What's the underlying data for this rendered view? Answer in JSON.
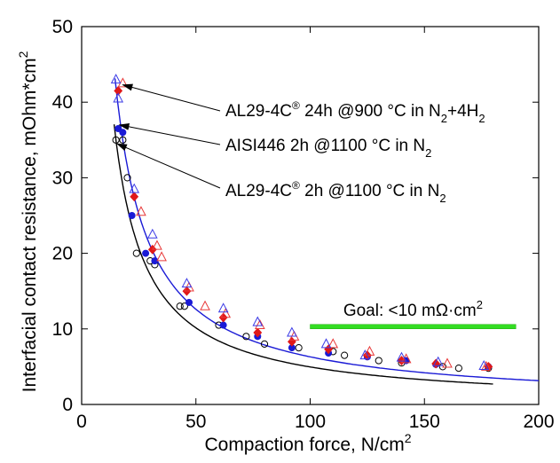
{
  "chart_data": {
    "type": "scatter",
    "xlabel": "Compaction force, N/cm",
    "xlabel_sup": "2",
    "ylabel": "Interfacial contact resistance, mOhm*cm",
    "ylabel_sup": "2",
    "xlim": [
      0,
      200
    ],
    "ylim": [
      0,
      50
    ],
    "x_ticks": [
      0,
      50,
      100,
      150,
      200
    ],
    "y_ticks": [
      0,
      10,
      20,
      30,
      40,
      50
    ],
    "x_tick_labels": [
      "0",
      "50",
      "100",
      "150",
      "200"
    ],
    "y_tick_labels": [
      "0",
      "10",
      "20",
      "30",
      "40",
      "50"
    ],
    "grid": false,
    "series": [
      {
        "marker": "open-circle",
        "color": "#000000",
        "points": [
          [
            15,
            35
          ],
          [
            18,
            35
          ],
          [
            20,
            30
          ],
          [
            24,
            20
          ],
          [
            30,
            19
          ],
          [
            32,
            18.5
          ],
          [
            43,
            13
          ],
          [
            45,
            13
          ],
          [
            60,
            10.5
          ],
          [
            72,
            9
          ],
          [
            80,
            8
          ],
          [
            95,
            7.5
          ],
          [
            110,
            7
          ],
          [
            115,
            6.5
          ],
          [
            130,
            5.8
          ],
          [
            140,
            5.5
          ],
          [
            158,
            5
          ],
          [
            165,
            4.8
          ],
          [
            178,
            4.8
          ]
        ]
      },
      {
        "marker": "filled-circle",
        "color": "#1a1ad6",
        "points": [
          [
            16,
            36.5
          ],
          [
            18,
            36
          ],
          [
            22,
            25
          ],
          [
            28,
            20
          ],
          [
            32,
            19
          ],
          [
            47,
            13.5
          ],
          [
            62,
            10.5
          ],
          [
            77,
            9
          ],
          [
            92,
            7.5
          ],
          [
            108,
            6.8
          ],
          [
            125,
            6.3
          ],
          [
            142,
            5.8
          ],
          [
            155,
            5.3
          ],
          [
            178,
            5
          ]
        ]
      },
      {
        "marker": "filled-diamond",
        "color": "#e01818",
        "points": [
          [
            16,
            41.5
          ],
          [
            23,
            27.5
          ],
          [
            31,
            20.5
          ],
          [
            46,
            15
          ],
          [
            62,
            11.5
          ],
          [
            77,
            9.5
          ],
          [
            92,
            8.3
          ],
          [
            108,
            7.3
          ],
          [
            125,
            6.5
          ],
          [
            140,
            5.8
          ],
          [
            155,
            5.4
          ],
          [
            178,
            5
          ]
        ]
      },
      {
        "marker": "open-triangle",
        "color": "#e83a3a",
        "points": [
          [
            18,
            42.5
          ],
          [
            26,
            25.5
          ],
          [
            33,
            21
          ],
          [
            35,
            19.5
          ],
          [
            47,
            15.5
          ],
          [
            54,
            13
          ],
          [
            63,
            12
          ],
          [
            78,
            10.5
          ],
          [
            93,
            9
          ],
          [
            110,
            8
          ],
          [
            126,
            7
          ],
          [
            142,
            6
          ],
          [
            160,
            5.4
          ],
          [
            177,
            5
          ]
        ]
      },
      {
        "marker": "open-triangle",
        "color": "#3a3ae6",
        "points": [
          [
            15,
            43
          ],
          [
            16,
            40.5
          ],
          [
            23,
            28.5
          ],
          [
            31,
            22.5
          ],
          [
            46,
            16
          ],
          [
            62,
            12.7
          ],
          [
            77,
            10.9
          ],
          [
            92,
            9.5
          ],
          [
            107,
            8
          ],
          [
            124,
            6.5
          ],
          [
            140,
            6.2
          ],
          [
            156,
            5.6
          ],
          [
            176,
            5.1
          ]
        ]
      }
    ],
    "curves": [
      {
        "color": "#1a1ad6",
        "k": 630,
        "p": 1,
        "x_from": 14.6,
        "x_to": 200
      },
      {
        "color": "#000000",
        "k": 570,
        "p": 1.03,
        "x_from": 14.2,
        "x_to": 180
      }
    ],
    "annotations": [
      {
        "pieces": [
          [
            "AL29-4C",
            "n"
          ],
          [
            "®",
            "sup"
          ],
          [
            " 24h @900 °C in N",
            "n"
          ],
          [
            "2",
            "sub"
          ],
          [
            "+4H",
            "n"
          ],
          [
            "2",
            "sub"
          ]
        ],
        "arrow_to": [
          18,
          42.3
        ]
      },
      {
        "pieces": [
          [
            "AISI446 2h @1100 °C in N",
            "n"
          ],
          [
            "2",
            "sub"
          ]
        ],
        "arrow_to": [
          16.5,
          37
        ]
      },
      {
        "pieces": [
          [
            "AL29-4C",
            "n"
          ],
          [
            "®",
            "sup"
          ],
          [
            " 2h @1100 °C in N",
            "n"
          ],
          [
            "2",
            "sub"
          ]
        ],
        "arrow_to": [
          15.5,
          34.5
        ]
      }
    ],
    "goal": {
      "text": "Goal: <10 mΩ·cm",
      "sup": "2",
      "bar_color": "#33dd22",
      "x_range": [
        100,
        190
      ],
      "y": 10.3
    }
  }
}
